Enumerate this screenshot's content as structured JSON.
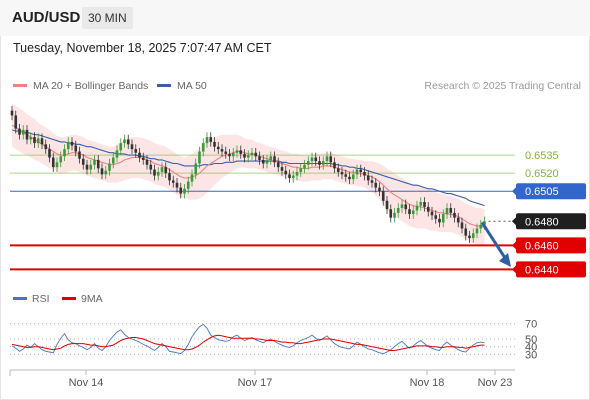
{
  "header": {
    "symbol": "AUD/USD",
    "timeframe": "30 MIN"
  },
  "datetime": "Tuesday, November 18, 2025 7:07:47 AM CET",
  "legend": {
    "ma_label": "MA 20 + Bollinger Bands",
    "ma50_label": "MA 50",
    "credit": "Research © 2025 Trading Central"
  },
  "colors": {
    "ma20": "#f08080",
    "ma50": "#3a5fa8",
    "bands": "#fcdcdc",
    "up": "#3a9a3a",
    "down": "#333333",
    "resistance": "#7cb342",
    "pivot": "#3366cc",
    "support": "#e00000",
    "rsi": "#4a74c9",
    "rsi_ma": "#e00000",
    "arrow": "#2e5fa3"
  },
  "chart_data": [
    {
      "type": "candlestick",
      "x_ticks": [
        "Nov 14",
        "Nov 17",
        "Nov 18",
        "Nov 23"
      ],
      "ylim": [
        0.6427,
        0.6585
      ],
      "levels": [
        {
          "value": 0.6535,
          "label": "0.6535",
          "kind": "resistance"
        },
        {
          "value": 0.652,
          "label": "0.6520",
          "kind": "resistance"
        },
        {
          "value": 0.6505,
          "label": "0.6505",
          "kind": "pivot"
        },
        {
          "value": 0.648,
          "label": "0.6480",
          "kind": "last"
        },
        {
          "value": 0.646,
          "label": "0.6460",
          "kind": "support"
        },
        {
          "value": 0.644,
          "label": "0.6440",
          "kind": "support"
        }
      ],
      "close": [
        0.6568,
        0.6557,
        0.6552,
        0.6556,
        0.6548,
        0.655,
        0.6545,
        0.6549,
        0.6544,
        0.654,
        0.6533,
        0.6525,
        0.6529,
        0.6534,
        0.654,
        0.6546,
        0.6543,
        0.6538,
        0.6532,
        0.6527,
        0.6523,
        0.6527,
        0.6531,
        0.6524,
        0.6519,
        0.6522,
        0.6528,
        0.6533,
        0.6539,
        0.6545,
        0.6548,
        0.6544,
        0.654,
        0.6537,
        0.6533,
        0.6531,
        0.6527,
        0.6523,
        0.6518,
        0.6521,
        0.6525,
        0.652,
        0.6514,
        0.6512,
        0.6508,
        0.6503,
        0.6507,
        0.6513,
        0.6519,
        0.6528,
        0.6538,
        0.6545,
        0.655,
        0.6546,
        0.6542,
        0.654,
        0.6538,
        0.6536,
        0.6534,
        0.6537,
        0.6539,
        0.6536,
        0.6533,
        0.6535,
        0.6537,
        0.6534,
        0.6531,
        0.6528,
        0.6531,
        0.6534,
        0.6529,
        0.6525,
        0.6522,
        0.6519,
        0.6516,
        0.6518,
        0.6521,
        0.6524,
        0.6527,
        0.653,
        0.6533,
        0.653,
        0.6527,
        0.653,
        0.6534,
        0.6529,
        0.6524,
        0.6521,
        0.6519,
        0.6517,
        0.6515,
        0.6519,
        0.6523,
        0.6521,
        0.6518,
        0.6514,
        0.6512,
        0.6508,
        0.6505,
        0.6497,
        0.649,
        0.6483,
        0.6487,
        0.6491,
        0.6494,
        0.649,
        0.6486,
        0.6489,
        0.6493,
        0.6496,
        0.6492,
        0.6488,
        0.6485,
        0.6482,
        0.6479,
        0.6486,
        0.6491,
        0.6487,
        0.6483,
        0.6479,
        0.6474,
        0.6468,
        0.6466,
        0.647,
        0.6474,
        0.6477,
        0.648
      ],
      "ma20": [
        0.656,
        0.6558,
        0.6556,
        0.6554,
        0.6552,
        0.655,
        0.6548,
        0.6546,
        0.6544,
        0.6542,
        0.654,
        0.6538,
        0.6536,
        0.6535,
        0.6535,
        0.6536,
        0.6537,
        0.6537,
        0.6536,
        0.6535,
        0.6533,
        0.6532,
        0.6531,
        0.653,
        0.6529,
        0.6528,
        0.6527,
        0.6527,
        0.6528,
        0.6529,
        0.6531,
        0.6532,
        0.6533,
        0.6533,
        0.6533,
        0.6532,
        0.6531,
        0.653,
        0.6528,
        0.6527,
        0.6526,
        0.6525,
        0.6523,
        0.6521,
        0.6519,
        0.6517,
        0.6516,
        0.6516,
        0.6517,
        0.6518,
        0.652,
        0.6523,
        0.6526,
        0.6528,
        0.653,
        0.6532,
        0.6534,
        0.6535,
        0.6536,
        0.6537,
        0.6538,
        0.6538,
        0.6537,
        0.6536,
        0.6536,
        0.6535,
        0.6534,
        0.6533,
        0.6532,
        0.6531,
        0.653,
        0.6529,
        0.6528,
        0.6527,
        0.6526,
        0.6525,
        0.6525,
        0.6524,
        0.6524,
        0.6524,
        0.6525,
        0.6525,
        0.6525,
        0.6526,
        0.6526,
        0.6526,
        0.6525,
        0.6524,
        0.6523,
        0.6522,
        0.6521,
        0.6521,
        0.652,
        0.652,
        0.6519,
        0.6518,
        0.6517,
        0.6515,
        0.6513,
        0.651,
        0.6507,
        0.6504,
        0.6502,
        0.65,
        0.6498,
        0.6496,
        0.6494,
        0.6493,
        0.6492,
        0.6492,
        0.6491,
        0.649,
        0.6489,
        0.6488,
        0.6487,
        0.6487,
        0.6486,
        0.6486,
        0.6485,
        0.6484,
        0.6482,
        0.648,
        0.6478,
        0.6477,
        0.6476,
        0.6476,
        0.6475
      ],
      "ma50": [
        0.6556,
        0.6555,
        0.6555,
        0.6554,
        0.6554,
        0.6553,
        0.6552,
        0.6552,
        0.6551,
        0.655,
        0.6549,
        0.6548,
        0.6547,
        0.6546,
        0.6546,
        0.6545,
        0.6545,
        0.6544,
        0.6544,
        0.6543,
        0.6542,
        0.6542,
        0.6541,
        0.654,
        0.6539,
        0.6538,
        0.6537,
        0.6537,
        0.6536,
        0.6536,
        0.6536,
        0.6535,
        0.6535,
        0.6535,
        0.6534,
        0.6534,
        0.6533,
        0.6532,
        0.6532,
        0.6531,
        0.6531,
        0.653,
        0.6529,
        0.6528,
        0.6528,
        0.6527,
        0.6526,
        0.6526,
        0.6526,
        0.6526,
        0.6526,
        0.6527,
        0.6527,
        0.6527,
        0.6528,
        0.6528,
        0.6528,
        0.6529,
        0.6529,
        0.6529,
        0.653,
        0.653,
        0.653,
        0.653,
        0.653,
        0.653,
        0.653,
        0.653,
        0.653,
        0.653,
        0.653,
        0.653,
        0.6529,
        0.6529,
        0.6528,
        0.6528,
        0.6528,
        0.6528,
        0.6528,
        0.6528,
        0.6528,
        0.6528,
        0.6528,
        0.6528,
        0.6528,
        0.6528,
        0.6527,
        0.6527,
        0.6526,
        0.6526,
        0.6525,
        0.6525,
        0.6524,
        0.6524,
        0.6523,
        0.6522,
        0.6521,
        0.652,
        0.6519,
        0.6518,
        0.6517,
        0.6516,
        0.6515,
        0.6514,
        0.6513,
        0.6512,
        0.6511,
        0.651,
        0.651,
        0.6509,
        0.6508,
        0.6507,
        0.6507,
        0.6506,
        0.6505,
        0.6504,
        0.6503,
        0.6503,
        0.6502,
        0.6501,
        0.65,
        0.6499,
        0.6497,
        0.6496,
        0.6495,
        0.6494,
        0.6493
      ],
      "band_width": [
        0.0018,
        0.0018,
        0.0018,
        0.0018,
        0.0017,
        0.0017,
        0.0017,
        0.0016,
        0.0016,
        0.0016,
        0.0016,
        0.0015,
        0.0015,
        0.0015,
        0.0015,
        0.0015,
        0.0015,
        0.0015,
        0.0015,
        0.0015,
        0.0015,
        0.0015,
        0.0015,
        0.0015,
        0.0015,
        0.0015,
        0.0015,
        0.0015,
        0.0016,
        0.0016,
        0.0017,
        0.0017,
        0.0017,
        0.0017,
        0.0017,
        0.0017,
        0.0017,
        0.0017,
        0.0017,
        0.0017,
        0.0017,
        0.0017,
        0.0017,
        0.0017,
        0.0017,
        0.0017,
        0.0017,
        0.0018,
        0.0019,
        0.002,
        0.0021,
        0.0022,
        0.0022,
        0.0021,
        0.002,
        0.0019,
        0.0018,
        0.0017,
        0.0016,
        0.0015,
        0.0014,
        0.0013,
        0.0012,
        0.0012,
        0.0012,
        0.0011,
        0.0011,
        0.0011,
        0.0011,
        0.0011,
        0.0011,
        0.0011,
        0.0011,
        0.0011,
        0.0011,
        0.0011,
        0.0011,
        0.0011,
        0.0011,
        0.0011,
        0.0011,
        0.0011,
        0.0011,
        0.0011,
        0.0011,
        0.0011,
        0.0011,
        0.0011,
        0.0011,
        0.0011,
        0.0011,
        0.0011,
        0.0011,
        0.0011,
        0.0011,
        0.0012,
        0.0013,
        0.0014,
        0.0015,
        0.0016,
        0.0017,
        0.0018,
        0.0018,
        0.0018,
        0.0018,
        0.0018,
        0.0018,
        0.0018,
        0.0018,
        0.0018,
        0.0017,
        0.0017,
        0.0017,
        0.0016,
        0.0016,
        0.0016,
        0.0015,
        0.0015,
        0.0015,
        0.0015,
        0.0015,
        0.0015,
        0.0015,
        0.0015,
        0.0015,
        0.0015,
        0.0015
      ]
    },
    {
      "type": "line",
      "legend": [
        "RSI",
        "9MA"
      ],
      "yticks": [
        70,
        50,
        40,
        30
      ],
      "ylim": [
        20,
        80
      ],
      "rsi": [
        41,
        38,
        34,
        37,
        42,
        39,
        44,
        40,
        36,
        34,
        33,
        32,
        43,
        51,
        57,
        49,
        45,
        44,
        41,
        39,
        36,
        39,
        44,
        38,
        35,
        40,
        48,
        54,
        59,
        62,
        56,
        52,
        50,
        48,
        46,
        43,
        41,
        38,
        35,
        39,
        44,
        40,
        34,
        33,
        32,
        31,
        35,
        43,
        53,
        60,
        66,
        69,
        64,
        55,
        52,
        49,
        48,
        47,
        48,
        53,
        55,
        51,
        48,
        50,
        52,
        49,
        47,
        45,
        48,
        50,
        47,
        44,
        42,
        40,
        39,
        41,
        45,
        48,
        50,
        52,
        55,
        51,
        48,
        51,
        54,
        49,
        44,
        41,
        39,
        38,
        37,
        41,
        46,
        43,
        40,
        37,
        36,
        34,
        32,
        31,
        33,
        36,
        40,
        44,
        47,
        42,
        38,
        41,
        45,
        48,
        44,
        40,
        38,
        36,
        35,
        42,
        46,
        42,
        39,
        36,
        34,
        33,
        38,
        42,
        45,
        46,
        45
      ],
      "rsi_ma": [
        43,
        42,
        41,
        40,
        39,
        39,
        40,
        40,
        39,
        38,
        37,
        36,
        37,
        38,
        41,
        43,
        44,
        44,
        44,
        44,
        43,
        42,
        42,
        41,
        40,
        40,
        41,
        42,
        45,
        48,
        50,
        51,
        52,
        52,
        51,
        50,
        48,
        46,
        44,
        43,
        42,
        41,
        40,
        39,
        38,
        37,
        36,
        36,
        37,
        39,
        42,
        46,
        49,
        52,
        54,
        55,
        54,
        53,
        52,
        51,
        51,
        51,
        51,
        51,
        51,
        50,
        50,
        49,
        48,
        48,
        48,
        47,
        46,
        46,
        45,
        45,
        44,
        44,
        45,
        46,
        47,
        48,
        49,
        50,
        50,
        50,
        49,
        48,
        47,
        46,
        45,
        44,
        43,
        43,
        42,
        41,
        40,
        39,
        38,
        37,
        36,
        35,
        35,
        36,
        37,
        38,
        39,
        40,
        41,
        41,
        41,
        41,
        40,
        40,
        39,
        39,
        40,
        40,
        40,
        39,
        39,
        38,
        39,
        40,
        41,
        42,
        42
      ]
    }
  ]
}
